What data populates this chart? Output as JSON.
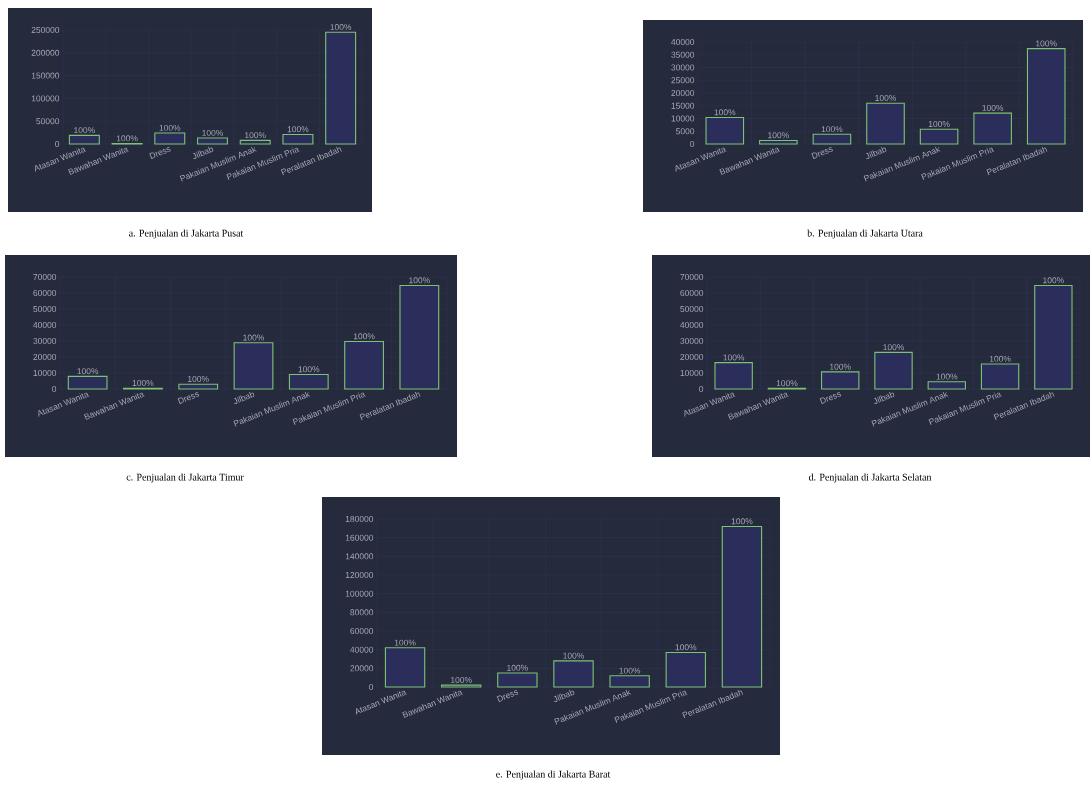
{
  "chart_data": [
    {
      "type": "bar",
      "title": "a. Penjualan di Jakarta Pusat",
      "categories": [
        "Atasan Wanita",
        "Bawahan Wanita",
        "Dress",
        "Jilbab",
        "Pakaian Muslim Anak",
        "Pakaian Muslim Pria",
        "Peralatan Ibadah"
      ],
      "values": [
        19000,
        1000,
        24000,
        13000,
        8000,
        21000,
        245000
      ],
      "color": "#7dc472",
      "ylim": [
        0,
        250000
      ],
      "yticks": [
        0,
        50000,
        100000,
        150000,
        200000,
        250000
      ],
      "grid": true,
      "legend": false,
      "annotations": [
        {
          "text": "100%",
          "x": "Atasan Wanita",
          "y": 19000
        },
        {
          "text": "100%",
          "x": "Bawahan Wanita",
          "y": 1000
        },
        {
          "text": "100%",
          "x": "Dress",
          "y": 24000
        },
        {
          "text": "100%",
          "x": "Jilbab",
          "y": 13000
        },
        {
          "text": "100%",
          "x": "Pakaian Muslim Anak",
          "y": 8000
        },
        {
          "text": "100%",
          "x": "Pakaian Muslim Pria",
          "y": 21000
        },
        {
          "text": "100%",
          "x": "Peralatan Ibadah",
          "y": 245000
        }
      ]
    },
    {
      "type": "bar",
      "title": "b. Penjualan di Jakarta Utara",
      "categories": [
        "Atasan Wanita",
        "Bawahan Wanita",
        "Dress",
        "Jilbab",
        "Pakaian Muslim Anak",
        "Pakaian Muslim Pria",
        "Peralatan Ibadah"
      ],
      "values": [
        10400,
        1400,
        3800,
        16000,
        5800,
        12100,
        37400
      ],
      "color": "#7dc472",
      "ylim": [
        0,
        40000
      ],
      "yticks": [
        0,
        5000,
        10000,
        15000,
        20000,
        25000,
        30000,
        35000,
        40000
      ],
      "grid": true,
      "legend": false,
      "annotations": [
        {
          "text": "100%",
          "x": "Atasan Wanita",
          "y": 10400
        },
        {
          "text": "100%",
          "x": "Bawahan Wanita",
          "y": 1400
        },
        {
          "text": "100%",
          "x": "Dress",
          "y": 3800
        },
        {
          "text": "100%",
          "x": "Jilbab",
          "y": 16000
        },
        {
          "text": "100%",
          "x": "Pakaian Muslim Anak",
          "y": 5800
        },
        {
          "text": "100%",
          "x": "Pakaian Muslim Pria",
          "y": 12100
        },
        {
          "text": "100%",
          "x": "Peralatan Ibadah",
          "y": 37400
        }
      ]
    },
    {
      "type": "bar",
      "title": "c. Penjualan di Jakarta Timur",
      "categories": [
        "Atasan Wanita",
        "Bawahan Wanita",
        "Dress",
        "Jilbab",
        "Pakaian Muslim Anak",
        "Pakaian Muslim Pria",
        "Peralatan Ibadah"
      ],
      "values": [
        7900,
        500,
        3000,
        28900,
        9100,
        29700,
        64700
      ],
      "color": "#7dc472",
      "ylim": [
        0,
        70000
      ],
      "yticks": [
        0,
        10000,
        20000,
        30000,
        40000,
        50000,
        60000,
        70000
      ],
      "grid": true,
      "legend": false,
      "annotations": [
        {
          "text": "100%",
          "x": "Atasan Wanita",
          "y": 7900
        },
        {
          "text": "100%",
          "x": "Bawahan Wanita",
          "y": 500
        },
        {
          "text": "100%",
          "x": "Dress",
          "y": 3000
        },
        {
          "text": "100%",
          "x": "Jilbab",
          "y": 28900
        },
        {
          "text": "100%",
          "x": "Pakaian Muslim Anak",
          "y": 9100
        },
        {
          "text": "100%",
          "x": "Pakaian Muslim Pria",
          "y": 29700
        },
        {
          "text": "100%",
          "x": "Peralatan Ibadah",
          "y": 64700
        }
      ]
    },
    {
      "type": "bar",
      "title": "d. Penjualan di Jakarta Selatan",
      "categories": [
        "Atasan Wanita",
        "Bawahan Wanita",
        "Dress",
        "Jilbab",
        "Pakaian Muslim Anak",
        "Pakaian Muslim Pria",
        "Peralatan Ibadah"
      ],
      "values": [
        16500,
        400,
        10700,
        22900,
        4500,
        15600,
        64700
      ],
      "color": "#7dc472",
      "ylim": [
        0,
        70000
      ],
      "yticks": [
        0,
        10000,
        20000,
        30000,
        40000,
        50000,
        60000,
        70000
      ],
      "grid": true,
      "legend": false,
      "annotations": [
        {
          "text": "100%",
          "x": "Atasan Wanita",
          "y": 16500
        },
        {
          "text": "100%",
          "x": "Bawahan Wanita",
          "y": 400
        },
        {
          "text": "100%",
          "x": "Dress",
          "y": 10700
        },
        {
          "text": "100%",
          "x": "Jilbab",
          "y": 22900
        },
        {
          "text": "100%",
          "x": "Pakaian Muslim Anak",
          "y": 4500
        },
        {
          "text": "100%",
          "x": "Pakaian Muslim Pria",
          "y": 15600
        },
        {
          "text": "100%",
          "x": "Peralatan Ibadah",
          "y": 64700
        }
      ]
    },
    {
      "type": "bar",
      "title": "e. Penjualan di Jakarta Barat",
      "categories": [
        "Atasan Wanita",
        "Bawahan Wanita",
        "Dress",
        "Jilbab",
        "Pakaian Muslim Anak",
        "Pakaian Muslim Pria",
        "Peralatan Ibadah"
      ],
      "values": [
        42000,
        2000,
        15000,
        28000,
        12000,
        37000,
        172000
      ],
      "color": "#7dc472",
      "ylim": [
        0,
        180000
      ],
      "yticks": [
        0,
        20000,
        40000,
        60000,
        80000,
        100000,
        120000,
        140000,
        160000,
        180000
      ],
      "grid": true,
      "legend": false,
      "annotations": [
        {
          "text": "100%",
          "x": "Atasan Wanita",
          "y": 42000
        },
        {
          "text": "100%",
          "x": "Bawahan Wanita",
          "y": 2000
        },
        {
          "text": "100%",
          "x": "Dress",
          "y": 15000
        },
        {
          "text": "100%",
          "x": "Jilbab",
          "y": 28000
        },
        {
          "text": "100%",
          "x": "Pakaian Muslim Anak",
          "y": 12000
        },
        {
          "text": "100%",
          "x": "Pakaian Muslim Pria",
          "y": 37000
        },
        {
          "text": "100%",
          "x": "Peralatan Ibadah",
          "y": 172000
        }
      ]
    }
  ]
}
